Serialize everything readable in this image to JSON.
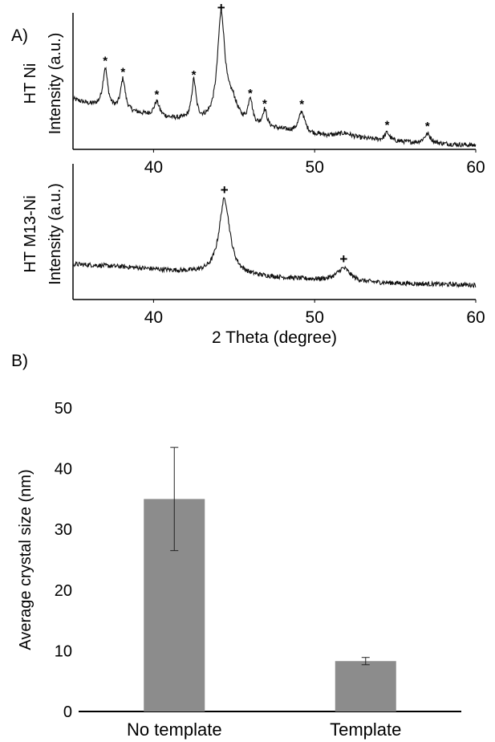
{
  "panels": {
    "a_label": "A)",
    "b_label": "B)"
  },
  "chart_data": [
    {
      "type": "line",
      "panel": "A",
      "ylabel_sample": "HT Ni",
      "ylabel": "Intensity (a.u.)",
      "xlabel": "",
      "xlim": [
        35,
        60
      ],
      "xticks": [
        40,
        50,
        60
      ],
      "grid": false,
      "baseline": [
        [
          35.0,
          0.38
        ],
        [
          36.0,
          0.34
        ],
        [
          37.5,
          0.3
        ],
        [
          39.0,
          0.27
        ],
        [
          41.0,
          0.23
        ],
        [
          43.0,
          0.2
        ],
        [
          45.5,
          0.17
        ],
        [
          47.5,
          0.15
        ],
        [
          50.0,
          0.11
        ],
        [
          52.0,
          0.09
        ],
        [
          54.0,
          0.07
        ],
        [
          56.0,
          0.05
        ],
        [
          58.0,
          0.04
        ],
        [
          60.0,
          0.03
        ]
      ],
      "peaks": [
        {
          "x": 37.0,
          "height": 0.3,
          "width": 0.18,
          "marker": "*"
        },
        {
          "x": 38.1,
          "height": 0.24,
          "width": 0.17,
          "marker": "*"
        },
        {
          "x": 40.2,
          "height": 0.11,
          "width": 0.2,
          "marker": "*"
        },
        {
          "x": 42.5,
          "height": 0.3,
          "width": 0.16,
          "marker": "*"
        },
        {
          "x": 44.2,
          "height": 0.82,
          "width": 0.28,
          "marker": "+"
        },
        {
          "x": 44.9,
          "height": 0.15,
          "width": 0.4,
          "marker": ""
        },
        {
          "x": 46.0,
          "height": 0.2,
          "width": 0.16,
          "marker": "*"
        },
        {
          "x": 46.9,
          "height": 0.13,
          "width": 0.16,
          "marker": "*"
        },
        {
          "x": 49.2,
          "height": 0.16,
          "width": 0.22,
          "marker": "*"
        },
        {
          "x": 51.9,
          "height": 0.03,
          "width": 0.5,
          "marker": ""
        },
        {
          "x": 54.5,
          "height": 0.06,
          "width": 0.18,
          "marker": "*"
        },
        {
          "x": 57.0,
          "height": 0.07,
          "width": 0.25,
          "marker": "*"
        }
      ]
    },
    {
      "type": "line",
      "panel": "A",
      "ylabel_sample": "HT M13-Ni",
      "ylabel": "Intensity (a.u.)",
      "xlabel": "2 Theta (degree)",
      "xlim": [
        35,
        60
      ],
      "xticks": [
        40,
        50,
        60
      ],
      "grid": false,
      "baseline": [
        [
          35.0,
          0.27
        ],
        [
          38.0,
          0.25
        ],
        [
          41.0,
          0.22
        ],
        [
          44.0,
          0.19
        ],
        [
          47.0,
          0.17
        ],
        [
          50.0,
          0.15
        ],
        [
          53.0,
          0.13
        ],
        [
          56.0,
          0.12
        ],
        [
          60.0,
          0.11
        ]
      ],
      "peaks": [
        {
          "x": 44.4,
          "height": 0.58,
          "width": 0.4,
          "marker": "+"
        },
        {
          "x": 51.8,
          "height": 0.1,
          "width": 0.5,
          "marker": "+"
        }
      ]
    },
    {
      "type": "bar",
      "panel": "B",
      "categories": [
        "No template",
        "Template"
      ],
      "values": [
        35.0,
        8.3
      ],
      "errors": [
        8.5,
        0.6
      ],
      "ylabel": "Average crystal size (nm)",
      "xlabel": "",
      "ylim": [
        0,
        50
      ],
      "yticks": [
        0,
        10,
        20,
        30,
        40,
        50
      ],
      "grid": false,
      "bar_color": "#8c8c8c"
    }
  ]
}
